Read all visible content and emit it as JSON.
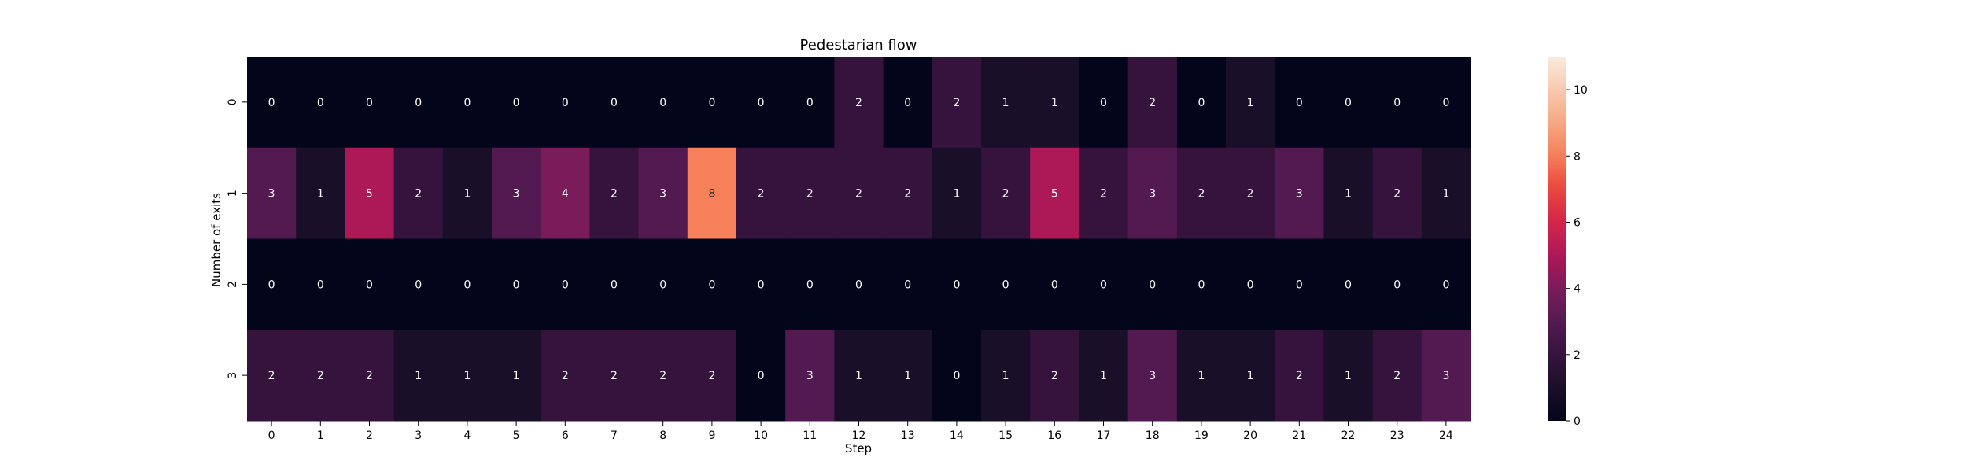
{
  "chart_data": {
    "type": "heatmap",
    "title": "Pedestarian flow",
    "xlabel": "Step",
    "ylabel": "Number of exits",
    "x_categories": [
      "0",
      "1",
      "2",
      "3",
      "4",
      "5",
      "6",
      "7",
      "8",
      "9",
      "10",
      "11",
      "12",
      "13",
      "14",
      "15",
      "16",
      "17",
      "18",
      "19",
      "20",
      "21",
      "22",
      "23",
      "24"
    ],
    "y_categories": [
      "0",
      "1",
      "2",
      "3"
    ],
    "values": [
      [
        0,
        0,
        0,
        0,
        0,
        0,
        0,
        0,
        0,
        0,
        0,
        0,
        2,
        0,
        2,
        1,
        1,
        0,
        2,
        0,
        1,
        0,
        0,
        0,
        0
      ],
      [
        3,
        1,
        5,
        2,
        1,
        3,
        4,
        2,
        3,
        8,
        2,
        2,
        2,
        2,
        1,
        2,
        5,
        2,
        3,
        2,
        2,
        3,
        1,
        2,
        1
      ],
      [
        0,
        0,
        0,
        0,
        0,
        0,
        0,
        0,
        0,
        0,
        0,
        0,
        0,
        0,
        0,
        0,
        0,
        0,
        0,
        0,
        0,
        0,
        0,
        0,
        0
      ],
      [
        2,
        2,
        2,
        1,
        1,
        1,
        2,
        2,
        2,
        2,
        0,
        3,
        1,
        1,
        0,
        1,
        2,
        1,
        3,
        1,
        1,
        2,
        1,
        2,
        3
      ]
    ],
    "colorbar": {
      "min": 0,
      "max": 11,
      "ticks": [
        "0",
        "2",
        "4",
        "6",
        "8",
        "10"
      ],
      "colormap": "rocket"
    },
    "grid": false,
    "legend": "colorbar-right"
  }
}
